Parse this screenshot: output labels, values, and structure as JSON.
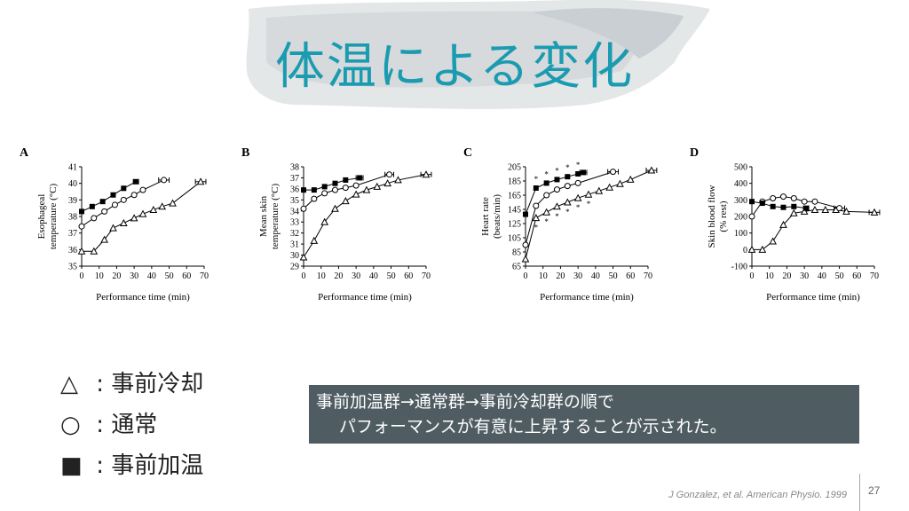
{
  "slide": {
    "title": "体温による変化",
    "page_number": "27",
    "citation": "J Gonzalez, et al. American Physio. 1999"
  },
  "legend": [
    {
      "symbol": "△",
      "sep": ":",
      "label": "事前冷却"
    },
    {
      "symbol": "○",
      "sep": ":",
      "label": "通常"
    },
    {
      "symbol": "■",
      "sep": ":",
      "label": "事前加温"
    }
  ],
  "note": {
    "line1": "事前加温群→通常群→事前冷却群の順で",
    "line2": "パフォーマンスが有意に上昇することが示された。"
  },
  "colors": {
    "title": "#1a9bb0",
    "note_bg": "#4f5d63"
  },
  "chart_data": [
    {
      "panel_label": "A",
      "type": "line",
      "ylabel": [
        "Esophageal",
        "temperature (°C)"
      ],
      "xlabel": "Performance time (min)",
      "xlim": [
        0,
        70
      ],
      "ylim": [
        35,
        41
      ],
      "xticks": [
        0,
        10,
        20,
        30,
        40,
        50,
        60,
        70
      ],
      "yticks": [
        35,
        36,
        37,
        38,
        39,
        40,
        41
      ],
      "series": [
        {
          "marker": "triangle",
          "x": [
            0,
            7,
            13,
            18,
            24,
            30,
            35,
            41,
            46,
            52
          ],
          "y": [
            35.9,
            35.9,
            36.6,
            37.3,
            37.6,
            37.9,
            38.15,
            38.4,
            38.6,
            38.8
          ],
          "end": {
            "x": 68,
            "y": 40.1,
            "err": 3
          }
        },
        {
          "marker": "circle",
          "x": [
            0,
            7,
            13,
            19,
            24,
            30,
            35
          ],
          "y": [
            37.4,
            37.9,
            38.3,
            38.7,
            39.0,
            39.3,
            39.6
          ],
          "end": {
            "x": 47,
            "y": 40.2,
            "err": 3
          }
        },
        {
          "marker": "square",
          "x": [
            0,
            6,
            12,
            18,
            24
          ],
          "y": [
            38.3,
            38.6,
            38.9,
            39.3,
            39.7
          ],
          "end": {
            "x": 31,
            "y": 40.1,
            "err": 1.5
          }
        }
      ]
    },
    {
      "panel_label": "B",
      "type": "line",
      "ylabel": [
        "Mean skin",
        "temperature (°C)"
      ],
      "xlabel": "Performance time (min)",
      "xlim": [
        0,
        70
      ],
      "ylim": [
        29,
        38
      ],
      "xticks": [
        0,
        10,
        20,
        30,
        40,
        50,
        60,
        70
      ],
      "yticks": [
        29,
        30,
        31,
        32,
        33,
        34,
        35,
        36,
        37,
        38
      ],
      "series": [
        {
          "marker": "triangle",
          "x": [
            0,
            6,
            12,
            18,
            24,
            30,
            36,
            42,
            48,
            54
          ],
          "y": [
            29.8,
            31.3,
            33.0,
            34.2,
            34.9,
            35.5,
            35.9,
            36.2,
            36.5,
            36.8
          ],
          "end": {
            "x": 70,
            "y": 37.3,
            "err": 3
          }
        },
        {
          "marker": "circle",
          "x": [
            0,
            6,
            12,
            18,
            24,
            30
          ],
          "y": [
            34.2,
            35.1,
            35.6,
            35.9,
            36.1,
            36.3
          ],
          "end": {
            "x": 49,
            "y": 37.3,
            "err": 2.5
          }
        },
        {
          "marker": "square",
          "x": [
            0,
            6,
            12,
            18,
            24
          ],
          "y": [
            35.9,
            35.9,
            36.2,
            36.5,
            36.8
          ],
          "end": {
            "x": 32,
            "y": 37.0,
            "err": 2
          }
        }
      ]
    },
    {
      "panel_label": "C",
      "type": "line",
      "ylabel": [
        "Heart rate",
        "(beats/min)"
      ],
      "xlabel": "Performance time (min)",
      "xlim": [
        0,
        70
      ],
      "ylim": [
        65,
        205
      ],
      "xticks": [
        0,
        10,
        20,
        30,
        40,
        50,
        60,
        70
      ],
      "yticks": [
        65,
        85,
        105,
        125,
        145,
        165,
        185,
        205
      ],
      "annotations": "*",
      "series": [
        {
          "marker": "triangle",
          "x": [
            0,
            6,
            12,
            18,
            24,
            30,
            36,
            42,
            48,
            54,
            60
          ],
          "y": [
            75,
            133,
            141,
            149,
            155,
            161,
            166,
            171,
            176,
            181,
            187
          ],
          "end": {
            "x": 72,
            "y": 200,
            "err": 3
          }
        },
        {
          "marker": "circle",
          "x": [
            0,
            6,
            12,
            18,
            24,
            30
          ],
          "y": [
            95,
            150,
            165,
            173,
            178,
            182
          ],
          "end": {
            "x": 50,
            "y": 198,
            "err": 3
          }
        },
        {
          "marker": "square",
          "x": [
            0,
            6,
            12,
            18,
            24,
            30
          ],
          "y": [
            138,
            175,
            182,
            187,
            191,
            195
          ],
          "end": {
            "x": 33,
            "y": 197,
            "err": 2
          }
        }
      ]
    },
    {
      "panel_label": "D",
      "type": "line",
      "ylabel": [
        "Skin blood flow",
        "(% rest)"
      ],
      "xlabel": "Performance time (min)",
      "xlim": [
        0,
        70
      ],
      "ylim": [
        -100,
        500
      ],
      "xticks": [
        0,
        10,
        20,
        30,
        40,
        50,
        60,
        70
      ],
      "yticks": [
        -100,
        0,
        100,
        200,
        300,
        400,
        500
      ],
      "series": [
        {
          "marker": "triangle",
          "x": [
            0,
            6,
            12,
            18,
            24,
            30,
            36,
            42,
            48,
            54
          ],
          "y": [
            0,
            0,
            50,
            150,
            220,
            230,
            240,
            240,
            240,
            230
          ],
          "end": {
            "x": 70,
            "y": 225,
            "err": 3
          }
        },
        {
          "marker": "circle",
          "x": [
            0,
            6,
            12,
            18,
            24,
            30,
            36
          ],
          "y": [
            200,
            290,
            310,
            320,
            310,
            290,
            290
          ],
          "end": {
            "x": 50,
            "y": 250,
            "err": 3
          }
        },
        {
          "marker": "square",
          "x": [
            0,
            6,
            12,
            18,
            24
          ],
          "y": [
            290,
            280,
            260,
            255,
            260
          ],
          "end": {
            "x": 31,
            "y": 250,
            "err": 1.5
          }
        }
      ]
    }
  ]
}
